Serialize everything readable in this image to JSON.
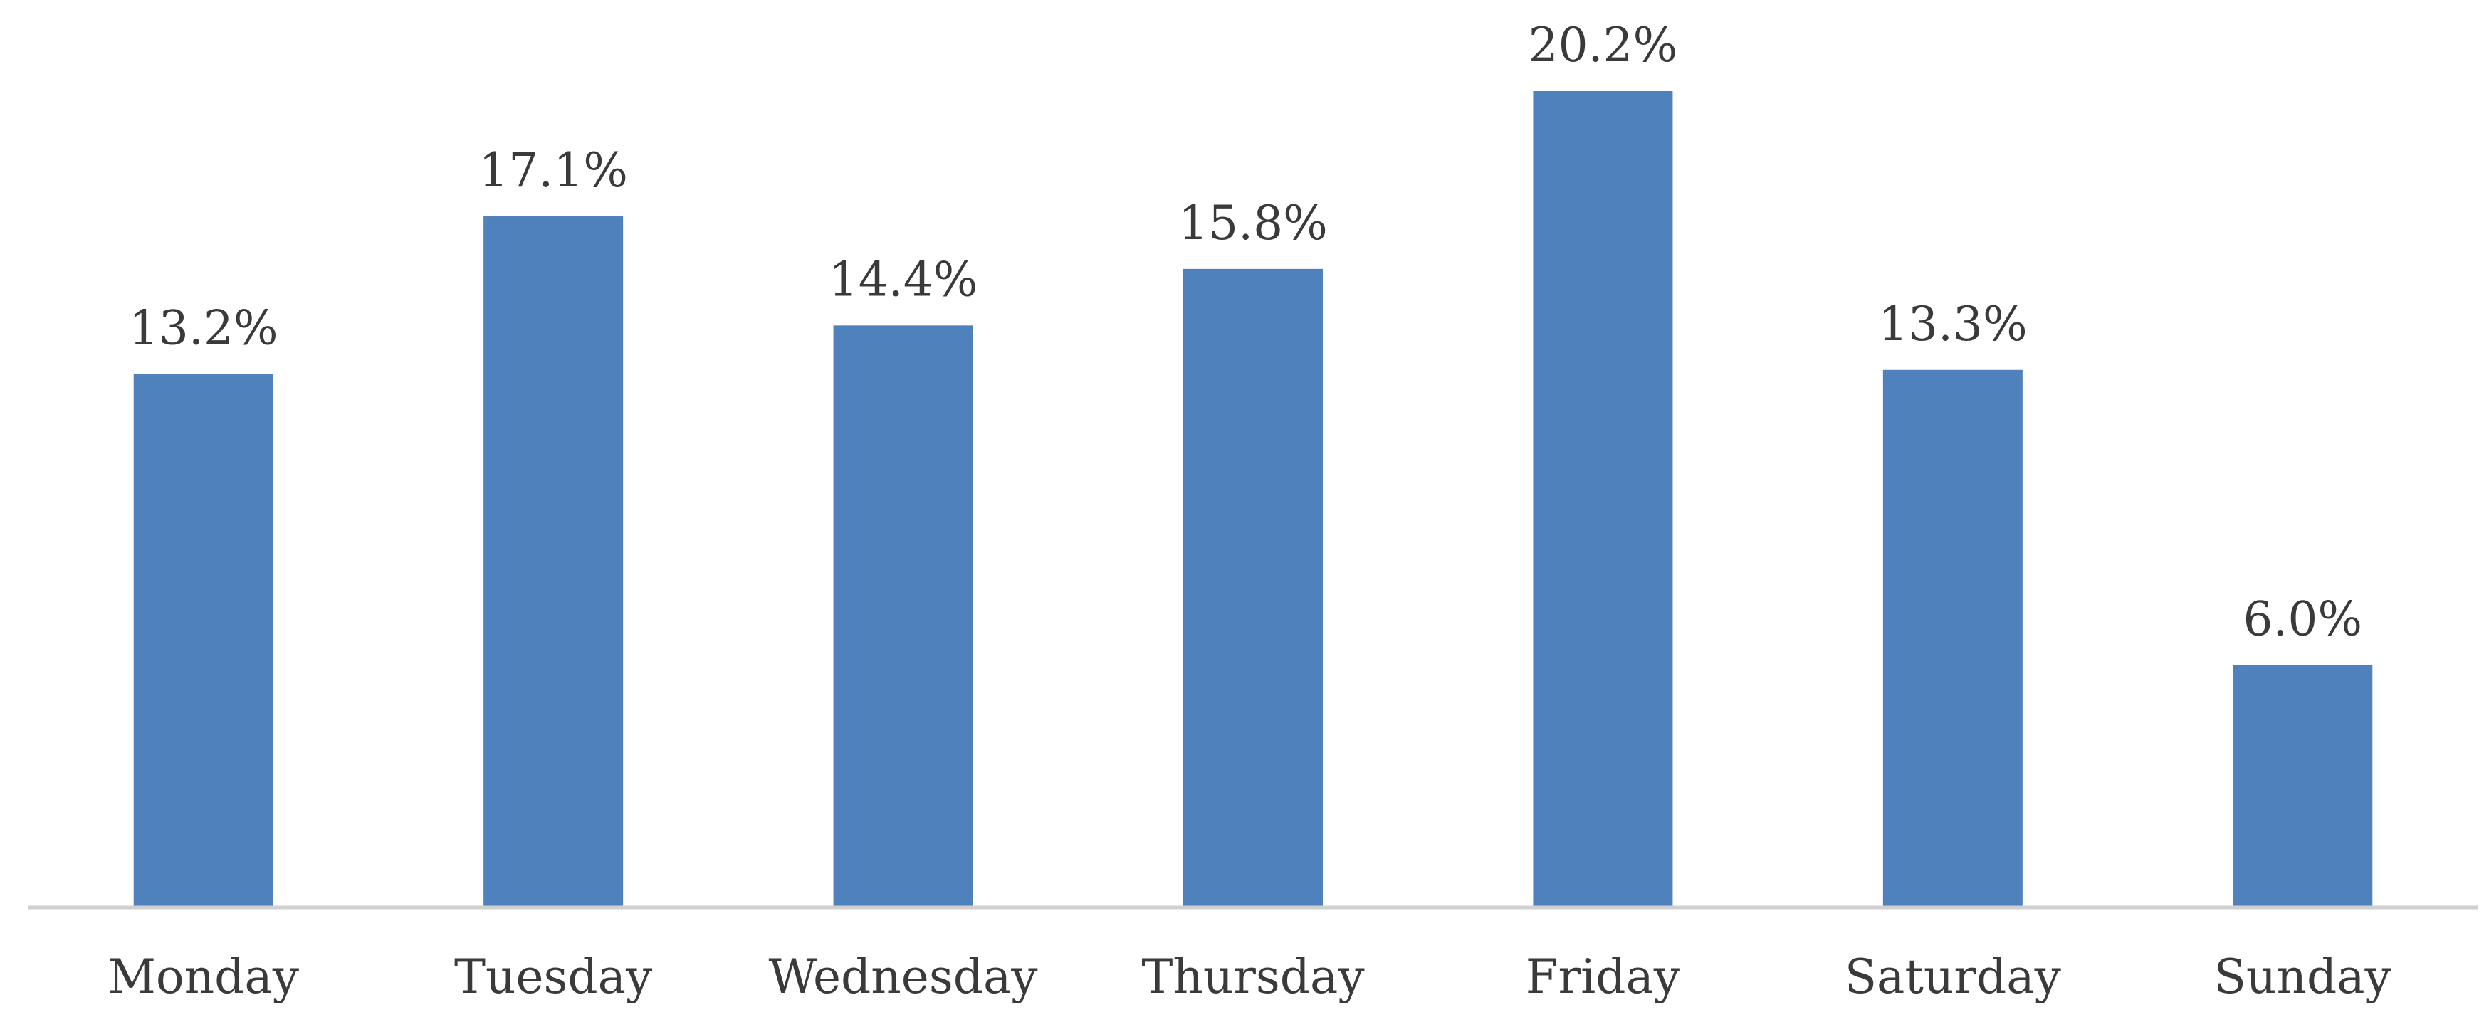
{
  "chart_data": {
    "type": "bar",
    "categories": [
      "Monday",
      "Tuesday",
      "Wednesday",
      "Thursday",
      "Friday",
      "Saturday",
      "Sunday"
    ],
    "values": [
      13.2,
      17.1,
      14.4,
      15.8,
      20.2,
      13.3,
      6.0
    ],
    "value_labels": [
      "13.2%",
      "17.1%",
      "14.4%",
      "15.8%",
      "20.2%",
      "13.3%",
      "6.0%"
    ],
    "title": "",
    "xlabel": "",
    "ylabel": "",
    "ylim": [
      0,
      20.2
    ],
    "grid": false,
    "bar_color": "#4f81bd",
    "axis_color": "#d0d0d0",
    "text_color": "#3a3a3a"
  }
}
